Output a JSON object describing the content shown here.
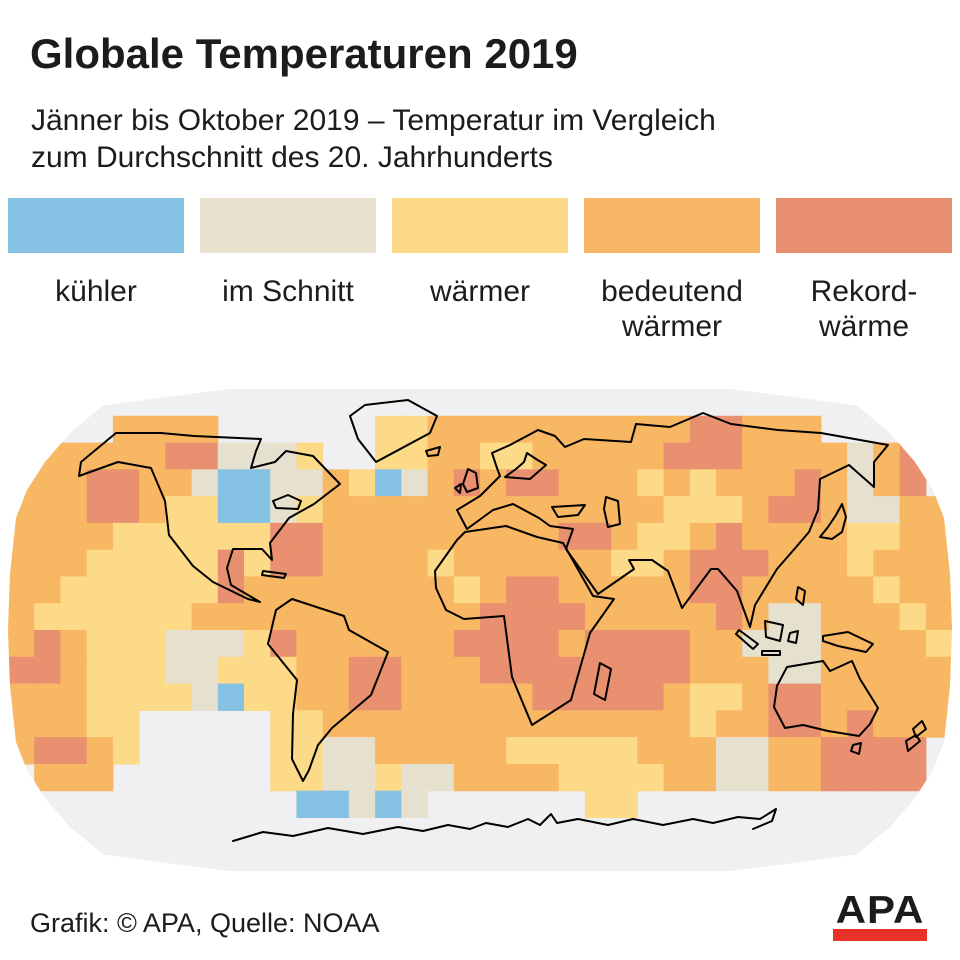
{
  "header": {
    "title": "Globale Temperaturen 2019",
    "subtitle_line1": "Jänner bis Oktober 2019 – Temperatur im Vergleich",
    "subtitle_line2": "zum Durchschnitt des 20. Jahrhunderts"
  },
  "legend": {
    "items": [
      {
        "key": "K",
        "label_line1": "kühler",
        "label_line2": "",
        "color": "#85c1e3"
      },
      {
        "key": "S",
        "label_line1": "im Schnitt",
        "label_line2": "",
        "color": "#e8e1ce"
      },
      {
        "key": "W",
        "label_line1": "wärmer",
        "label_line2": "",
        "color": "#fdda88"
      },
      {
        "key": "B",
        "label_line1": "bedeutend",
        "label_line2": "wärmer",
        "color": "#f8b766"
      },
      {
        "key": "R",
        "label_line1": "Rekord-",
        "label_line2": "wärme",
        "color": "#e8906f"
      }
    ]
  },
  "map": {
    "background": "#f0eff1",
    "outline_color": "#000000"
  },
  "footer": {
    "credit": "Grafik: © APA, Quelle: NOAA",
    "logo_text": "APA",
    "logo_bar_color": "#e63229"
  },
  "chart_data": {
    "type": "heatmap",
    "title": "Globale Temperaturen 2019",
    "subtitle": "Jänner bis Oktober 2019 – Temperatur im Vergleich zum Durchschnitt des 20. Jahrhunderts",
    "projection": "robinson",
    "source": "NOAA",
    "categories": [
      "kühler",
      "im Schnitt",
      "wärmer",
      "bedeutend wärmer",
      "Rekordwärme"
    ],
    "colors": {
      "K": "#85c1e3",
      "S": "#e6e0cf",
      "W": "#fdda88",
      "B": "#f8b763",
      "R": "#e8906f"
    },
    "no_data_key": ".",
    "rows": 18,
    "cols": 36,
    "cell_degrees": 10,
    "grid_rows": [
      "....................................",
      "....BBBB......WWBBBBBBBBBBRRBBB.....",
      ".BBBBBRRSSSW..WWBBWWBBBBBRRRBBBBSBR.",
      "BBBRRBBSKKSSBWKSBRBRRBBBWBWBBBRBSBR.",
      "BBBRRBWWKKSWBBBBBBBBBBBBBWWWBRRBSSBB",
      "BBBBWWWWWWRRBBBBBBBBBRRBWWBRBBBBWWBB",
      "BBBWWWWWRWRRBBBBWBBBBBBWWBRRRBBBWBBB",
      "BBWWWWWWRBBBBBBBBWBRRBBBBBRRBBBBBWBB",
      "BWWWWWWBBBBBBBBBBBRRRRBBBBBRBSSBBBWB",
      "BRBWWWSSSWRBBBBBBRRRRBRRRRBBSSSBBBBW",
      "RRBWWWSSWWWBBRRBBBRRRRRRRRBBBSSBBBBB",
      "BBBWWWWSKWWBBRRBBBBBRRRRRBWWBRRBBBBB",
      "BBBWW.....WWBBBBBBBBBBBBBBWBBRRBRBBB",
      "BRRBW.....WWSSBBBBBWWWWWBBBSSBBRRRR.",
      ".BBB......WWSSWSSBBBBWWWWBBSSBBRRRR.",
      "...........KKSKS......WW............",
      "....................................",
      "...................................."
    ]
  }
}
